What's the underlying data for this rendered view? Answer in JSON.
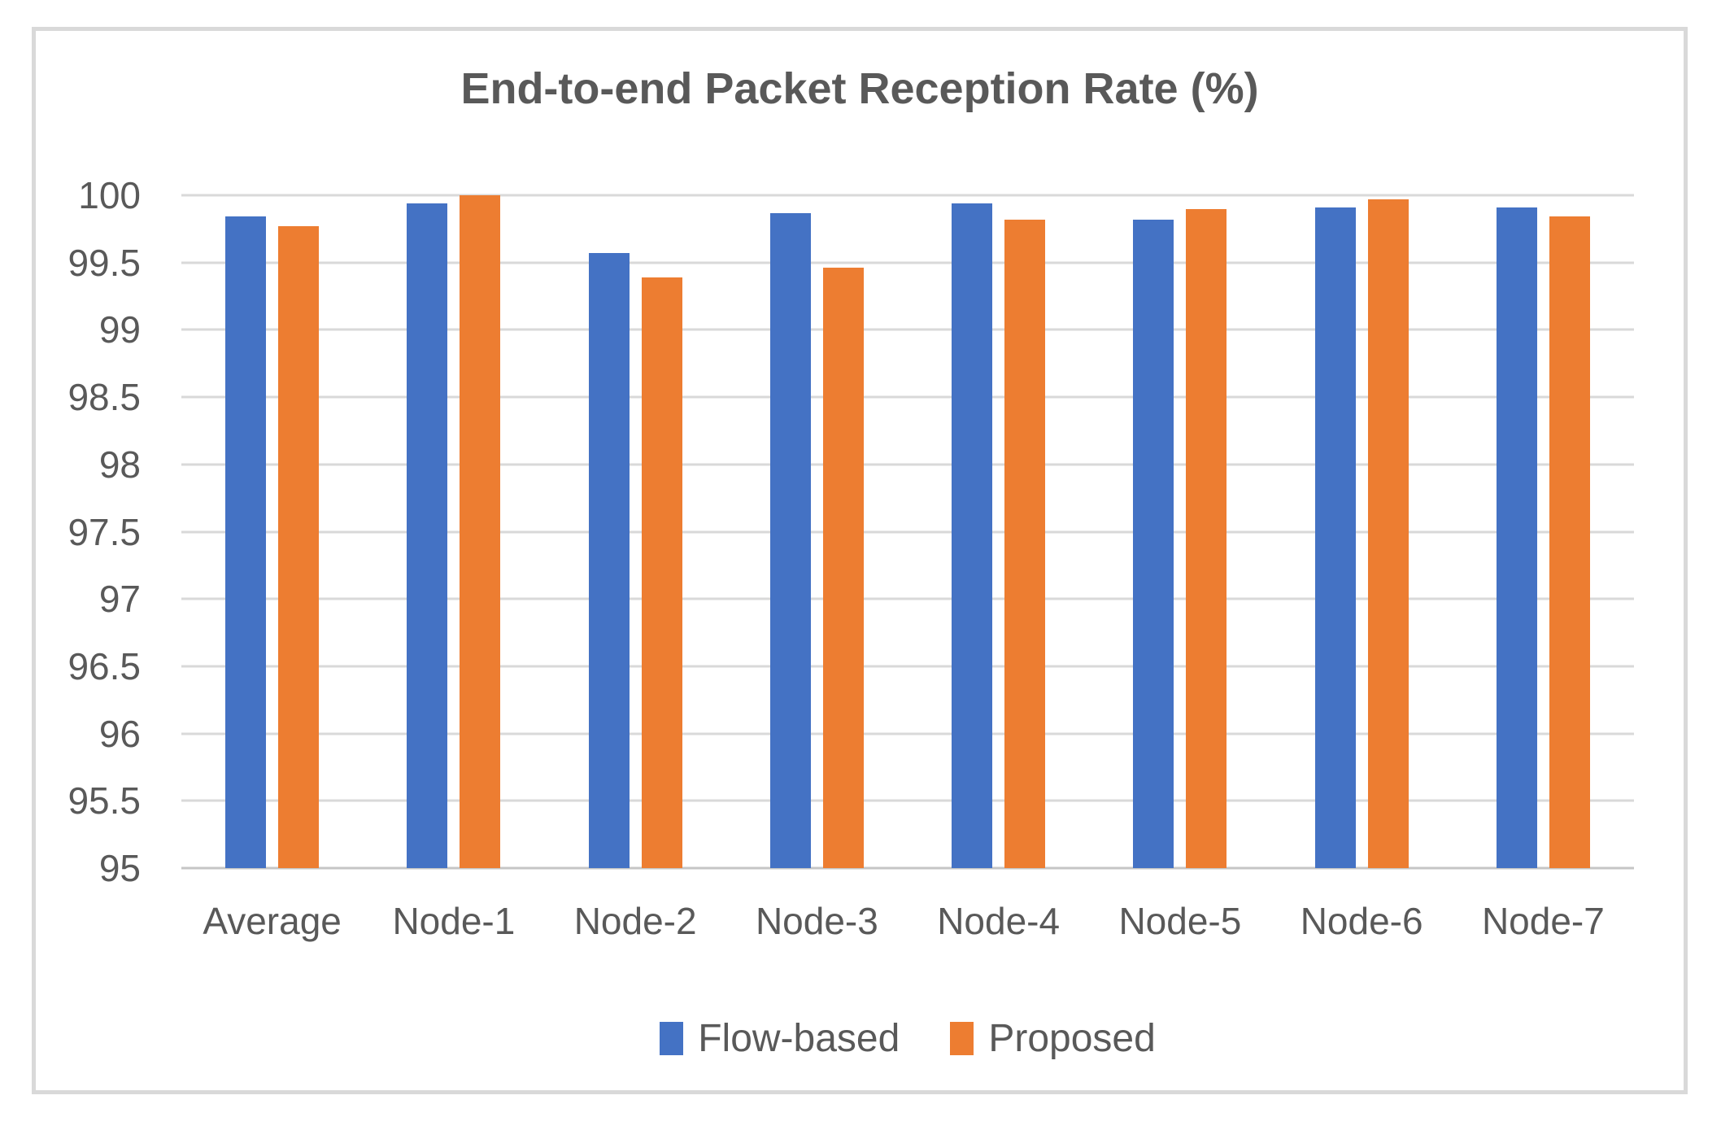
{
  "chart_data": {
    "type": "bar",
    "title": "End-to-end Packet Reception Rate (%)",
    "categories": [
      "Average",
      "Node-1",
      "Node-2",
      "Node-3",
      "Node-4",
      "Node-5",
      "Node-6",
      "Node-7"
    ],
    "series": [
      {
        "name": "Flow-based",
        "color": "#4472C4",
        "values": [
          99.84,
          99.94,
          99.57,
          99.87,
          99.94,
          99.82,
          99.91,
          99.91
        ]
      },
      {
        "name": "Proposed",
        "color": "#ED7D31",
        "values": [
          99.77,
          100.0,
          99.39,
          99.46,
          99.82,
          99.9,
          99.97,
          99.84
        ]
      }
    ],
    "ylim": [
      95,
      100
    ],
    "ytick_step": 0.5,
    "ytick_labels": [
      "100",
      "99.5",
      "99",
      "98.5",
      "98",
      "97.5",
      "97",
      "96.5",
      "96",
      "95.5",
      "95"
    ],
    "xlabel": "",
    "ylabel": "",
    "grid": true,
    "legend_position": "bottom",
    "colors": {
      "gridline": "#D9D9D9",
      "axis_line": "#C6C6C6",
      "text": "#595959",
      "frame_border": "#D9D9D9",
      "background": "#FFFFFF"
    }
  }
}
